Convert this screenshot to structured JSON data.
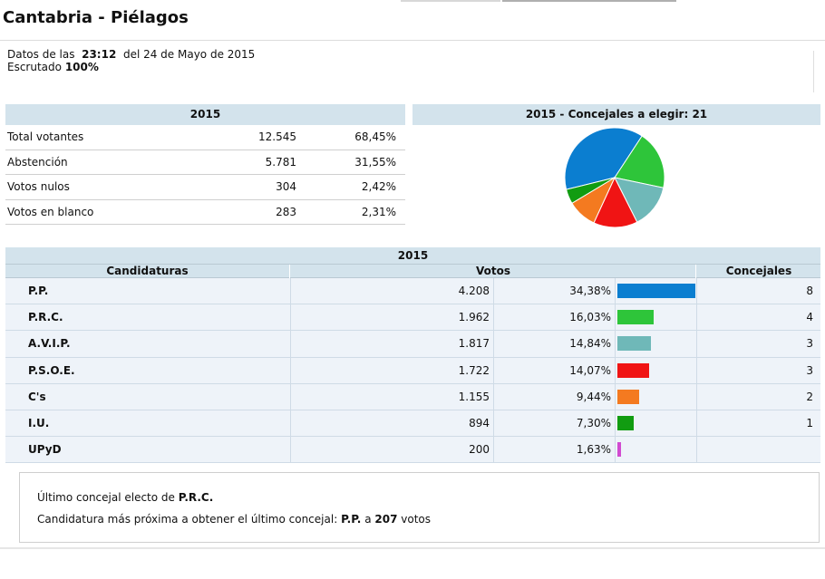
{
  "page": {
    "title": "Cantabria - Piélagos"
  },
  "meta": {
    "prefix": "Datos de las",
    "time": "23:12",
    "date": "del 24 de Mayo de 2015",
    "scrutiny_label": "Escrutado",
    "scrutiny_value": "100%"
  },
  "summary": {
    "header": "2015",
    "rows": [
      {
        "label": "Total votantes",
        "value": "12.545",
        "pct": "68,45%"
      },
      {
        "label": "Abstención",
        "value": "5.781",
        "pct": "31,55%"
      },
      {
        "label": "Votos nulos",
        "value": "304",
        "pct": "2,42%"
      },
      {
        "label": "Votos en blanco",
        "value": "283",
        "pct": "2,31%"
      }
    ]
  },
  "pie": {
    "header": "2015 - Concejales a elegir: 21"
  },
  "results": {
    "year": "2015",
    "col_party": "Candidaturas",
    "col_votes": "Votos",
    "col_seats": "Concejales",
    "rows": [
      {
        "party": "P.P.",
        "votes": "4.208",
        "pct": "34,38%",
        "pct_value": 34.38,
        "seats": "8",
        "color": "#0b7ed0"
      },
      {
        "party": "P.R.C.",
        "votes": "1.962",
        "pct": "16,03%",
        "pct_value": 16.03,
        "seats": "4",
        "color": "#2ec53a"
      },
      {
        "party": "A.V.I.P.",
        "votes": "1.817",
        "pct": "14,84%",
        "pct_value": 14.84,
        "seats": "3",
        "color": "#6fb8b8"
      },
      {
        "party": "P.S.O.E.",
        "votes": "1.722",
        "pct": "14,07%",
        "pct_value": 14.07,
        "seats": "3",
        "color": "#f01414"
      },
      {
        "party": "C's",
        "votes": "1.155",
        "pct": "9,44%",
        "pct_value": 9.44,
        "seats": "2",
        "color": "#f47a20"
      },
      {
        "party": "I.U.",
        "votes": "894",
        "pct": "7,30%",
        "pct_value": 7.3,
        "seats": "1",
        "color": "#119c11"
      },
      {
        "party": "UPyD",
        "votes": "200",
        "pct": "1,63%",
        "pct_value": 1.63,
        "seats": "",
        "color": "#d14ad1"
      }
    ]
  },
  "note": {
    "line1_prefix": "Último concejal electo de",
    "line1_party": "P.R.C.",
    "line2_prefix": "Candidatura más próxima a obtener el último concejal:",
    "line2_party": "P.P.",
    "line2_mid": "a",
    "line2_votes": "207",
    "line2_suffix": "votos"
  }
}
